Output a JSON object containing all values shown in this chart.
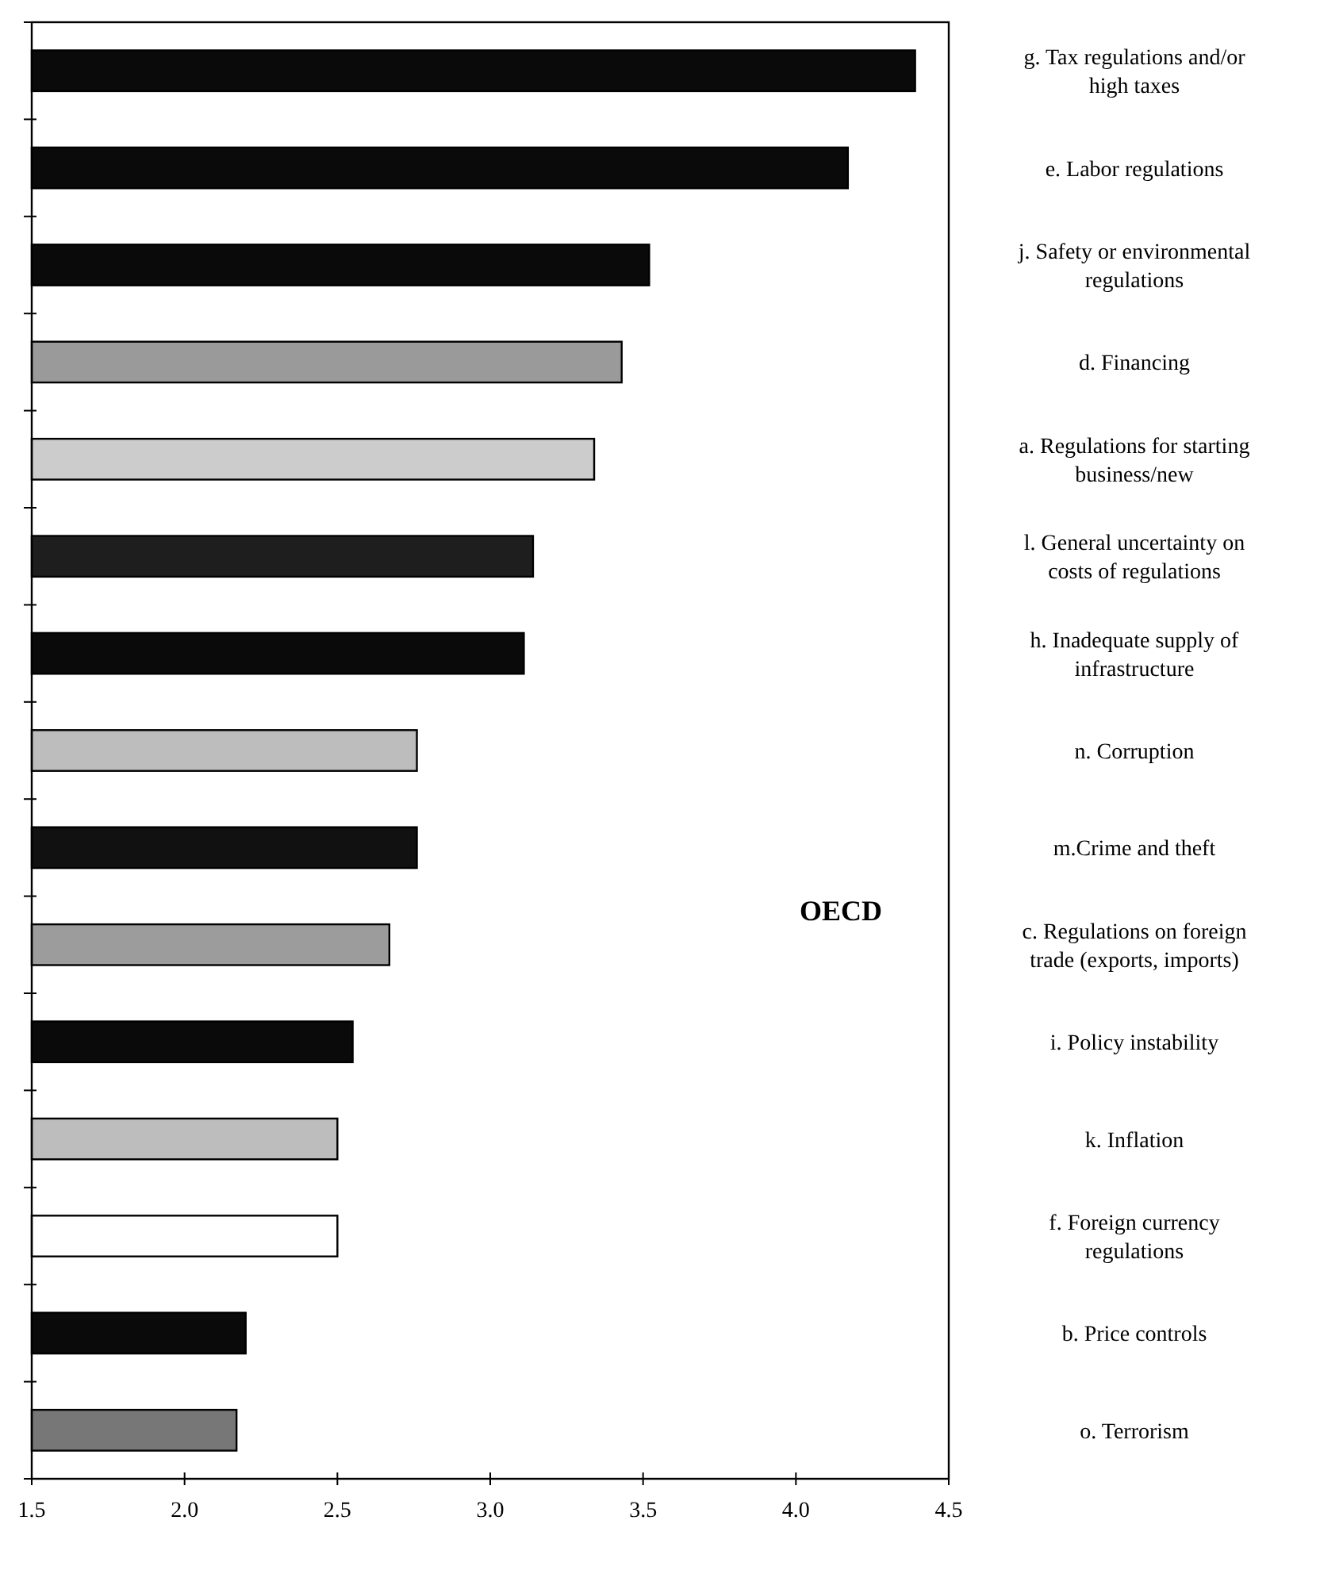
{
  "chart_data": {
    "type": "bar",
    "orientation": "horizontal",
    "categories": [
      "g. Tax regulations and/or high taxes",
      "e. Labor regulations",
      "j.  Safety or environmental regulations",
      "d. Financing",
      "a. Regulations for starting business/new",
      "l.  General uncertainty on costs of regulations",
      "h. Inadequate supply of infrastructure",
      "n. Corruption",
      "m.Crime and theft",
      "c.  Regulations on foreign trade (exports, imports)",
      "i.  Policy instability",
      "k. Inflation",
      "f.  Foreign currency regulations",
      "b. Price controls",
      "o.  Terrorism"
    ],
    "values": [
      4.39,
      4.17,
      3.52,
      3.43,
      3.34,
      3.14,
      3.11,
      2.76,
      2.76,
      2.67,
      2.55,
      2.5,
      2.5,
      2.2,
      2.17
    ],
    "colors": [
      "#0a0a0a",
      "#0a0a0a",
      "#0a0a0a",
      "#9a9a9a",
      "#cccccc",
      "#1e1e1e",
      "#0a0a0a",
      "#bdbdbd",
      "#111111",
      "#9c9c9c",
      "#0a0a0a",
      "#bdbdbd",
      "#ffffff",
      "#0a0a0a",
      "#777777"
    ],
    "xlim": [
      1.5,
      4.5
    ],
    "xticks": [
      {
        "value": 1.5,
        "label": "1.5"
      },
      {
        "value": 2,
        "label": "2.0"
      },
      {
        "value": 2.5,
        "label": "2.5"
      },
      {
        "value": 3,
        "label": "3.0"
      },
      {
        "value": 3.5,
        "label": "3.5"
      },
      {
        "value": 4,
        "label": "4.0"
      },
      {
        "value": 4.5,
        "label": "4.5"
      }
    ],
    "annotations": [
      "OECD"
    ]
  }
}
